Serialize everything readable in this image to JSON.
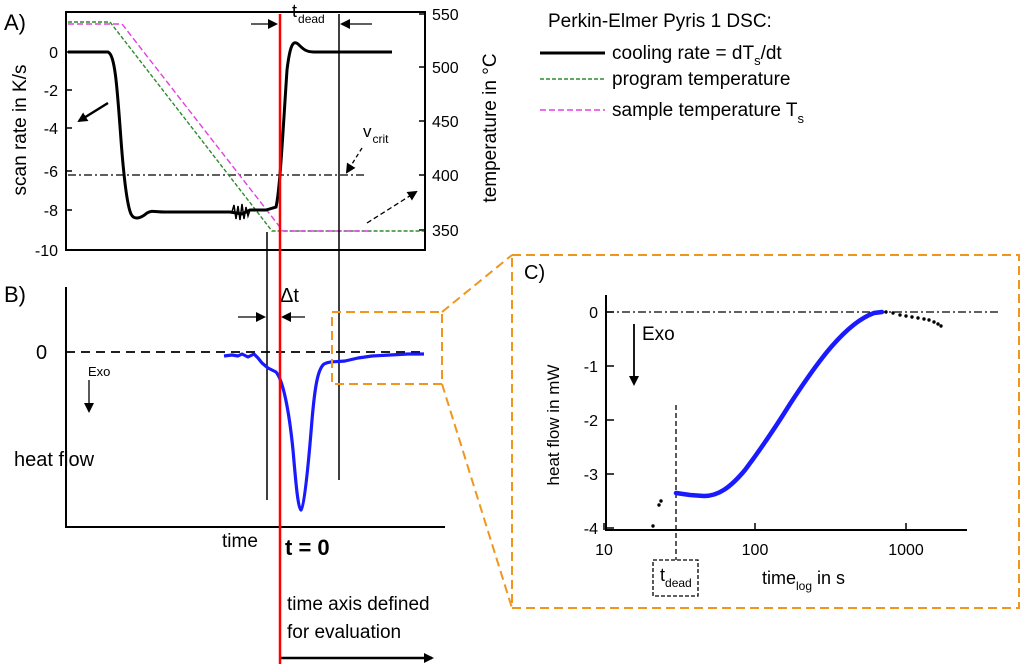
{
  "colors": {
    "cooling": "#000000",
    "program": "#2e8b2e",
    "sample": "#e040e0",
    "heatflow": "#1a1aff",
    "t0_line": "#ff0000",
    "t0_text": "#e00000",
    "zoom_box": "#f0961e"
  },
  "panel_a": {
    "label": "A)",
    "y_left_label": "scan rate in K/s",
    "y_left_ticks": [
      "0",
      "-2",
      "-4",
      "-6",
      "-8",
      "-10"
    ],
    "y_right_label": "temperature in °C",
    "y_right_ticks": [
      "550",
      "500",
      "450",
      "400",
      "350"
    ],
    "tdead_main": "t",
    "tdead_sub": "dead",
    "vcrit_main": "v",
    "vcrit_sub": "crit",
    "legend_title": "Perkin-Elmer Pyris 1 DSC:",
    "legend_cooling_a": "cooling rate = dT",
    "legend_cooling_sub": "s",
    "legend_cooling_b": "/dt",
    "legend_program": "program temperature",
    "legend_sample": "sample temperature T",
    "legend_sample_sub": "s"
  },
  "panel_b": {
    "label": "B)",
    "ylabel": "heat flow",
    "zero_label": "0",
    "exo_label": "Exo",
    "dt_label": "Δt",
    "xlabel": "time",
    "t0_label": "t = 0",
    "time_axis_line1": "time axis defined",
    "time_axis_line2": "for evaluation"
  },
  "panel_c": {
    "label": "C)",
    "ylabel": "heat flow in mW",
    "y_ticks": [
      "0",
      "-1",
      "-2",
      "-3",
      "-4"
    ],
    "x_ticks": [
      "10",
      "100",
      "1000"
    ],
    "xlabel_main": "time",
    "xlabel_sub": "log",
    "xlabel_unit": " in s",
    "exo_label": "Exo",
    "tdead_main": "t",
    "tdead_sub": "dead"
  }
}
